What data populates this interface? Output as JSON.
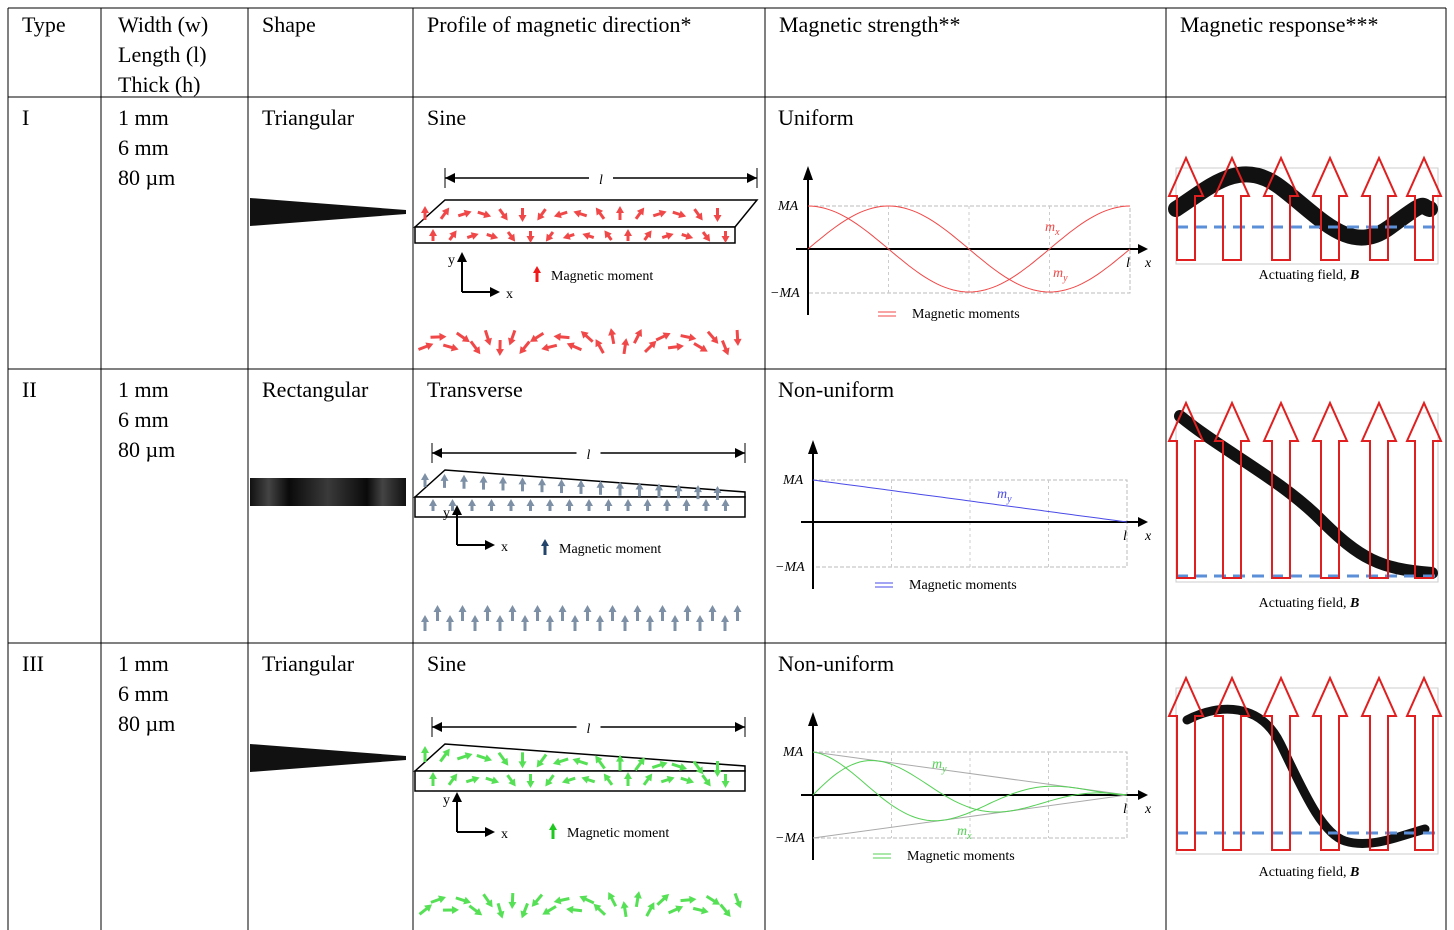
{
  "table": {
    "header": [
      "Type",
      [
        "Width (w)",
        "Length (l)",
        "Thick (h)"
      ],
      "Shape",
      "Profile of magnetic direction*",
      "Magnetic strength**",
      "Magnetic response***"
    ],
    "rows": [
      {
        "type": "I",
        "dims": [
          "1 mm",
          "6 mm",
          "80 µm"
        ],
        "shape": "Triangular",
        "profile": "Sine",
        "strength": "Uniform",
        "profile_figure": {
          "dimension": "l",
          "axis_y": "y",
          "axis_x": "x",
          "legend": "Magnetic moment"
        },
        "strength_figure": {
          "max": "MA",
          "min": "−MA",
          "length": "l",
          "axis_x": "x",
          "curves": [
            {
              "base": "m",
              "sub": "x"
            },
            {
              "base": "m",
              "sub": "y"
            }
          ],
          "legend": "Magnetic moments"
        },
        "response_figure": {
          "caption": [
            "Actuating field, ",
            "B"
          ]
        }
      },
      {
        "type": "II",
        "dims": [
          "1 mm",
          "6 mm",
          "80 µm"
        ],
        "shape": "Rectangular",
        "profile": "Transverse",
        "strength": "Non-uniform",
        "profile_figure": {
          "dimension": "l",
          "axis_y": "y",
          "axis_x": "x",
          "legend": "Magnetic moment"
        },
        "strength_figure": {
          "max": "MA",
          "min": "−MA",
          "length": "l",
          "axis_x": "x",
          "curves": [
            {
              "base": "m",
              "sub": "y"
            }
          ],
          "legend": "Magnetic moments"
        },
        "response_figure": {
          "caption": [
            "Actuating field, ",
            "B"
          ]
        }
      },
      {
        "type": "III",
        "dims": [
          "1 mm",
          "6 mm",
          "80 µm"
        ],
        "shape": "Triangular",
        "profile": "Sine",
        "strength": "Non-uniform",
        "profile_figure": {
          "dimension": "l",
          "axis_y": "y",
          "axis_x": "x",
          "legend": "Magnetic moment"
        },
        "strength_figure": {
          "max": "MA",
          "min": "−MA",
          "length": "l",
          "axis_x": "x",
          "curves": [
            {
              "base": "m",
              "sub": "y"
            },
            {
              "base": "m",
              "sub": "x"
            }
          ],
          "legend": "Magnetic moments"
        },
        "response_figure": {
          "caption": [
            "Actuating field, ",
            "B"
          ]
        }
      }
    ]
  }
}
